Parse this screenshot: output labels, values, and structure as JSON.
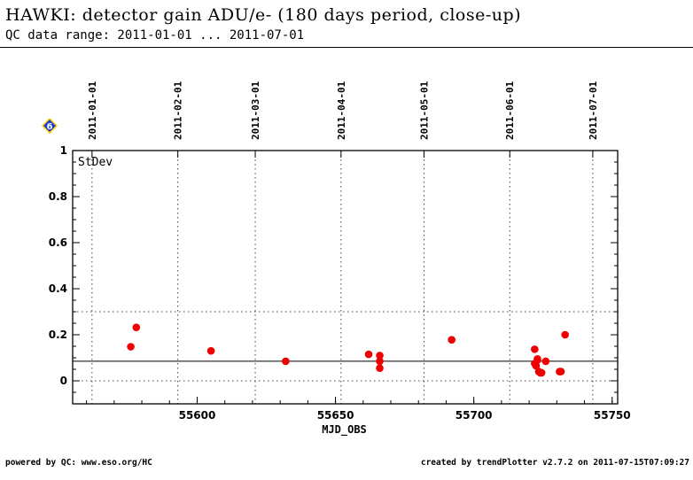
{
  "title": "HAWKI: detector gain ADU/e- (180 days period, close-up)",
  "subtitle": "QC data range: 2011-01-01 ... 2011-07-01",
  "footer_left": "powered by QC: www.eso.org/HC",
  "footer_right": "created by trendPlotter v2.7.2 on 2011-07-15T07:09:27",
  "colors": {
    "points": "#ee0000",
    "marker_fill": "#1a3bd8",
    "marker_stroke": "#ffd200"
  },
  "chart_data": {
    "type": "scatter",
    "panel_label": "StDev",
    "xlabel": "MJD_OBS",
    "ylabel": "",
    "xlim": [
      55555,
      55752
    ],
    "ylim": [
      -0.1,
      1.0
    ],
    "x_ticks": [
      55600,
      55650,
      55700,
      55750
    ],
    "y_ticks": [
      0,
      0.2,
      0.4,
      0.6,
      0.8,
      1
    ],
    "date_ticks": [
      {
        "label": "2011-01-01",
        "mjd": 55562
      },
      {
        "label": "2011-02-01",
        "mjd": 55593
      },
      {
        "label": "2011-03-01",
        "mjd": 55621
      },
      {
        "label": "2011-04-01",
        "mjd": 55652
      },
      {
        "label": "2011-05-01",
        "mjd": 55682
      },
      {
        "label": "2011-06-01",
        "mjd": 55713
      },
      {
        "label": "2011-07-01",
        "mjd": 55743
      }
    ],
    "reference_line": 0.085,
    "threshold_lines": [
      0.0,
      0.3
    ],
    "marker_label": "6",
    "series": [
      {
        "x": [
          55576,
          55578,
          55605,
          55632,
          55662,
          55666,
          55666,
          55666,
          55692,
          55722,
          55722,
          55722.5,
          55723,
          55723,
          55723.5,
          55724,
          55724.5,
          55726,
          55731,
          55731.5,
          55733
        ],
        "y": [
          0.148,
          0.232,
          0.13,
          0.085,
          0.115,
          0.11,
          0.085,
          0.055,
          0.178,
          0.137,
          0.075,
          0.065,
          0.095,
          0.09,
          0.04,
          0.035,
          0.035,
          0.085,
          0.04,
          0.04,
          0.2
        ]
      }
    ]
  }
}
